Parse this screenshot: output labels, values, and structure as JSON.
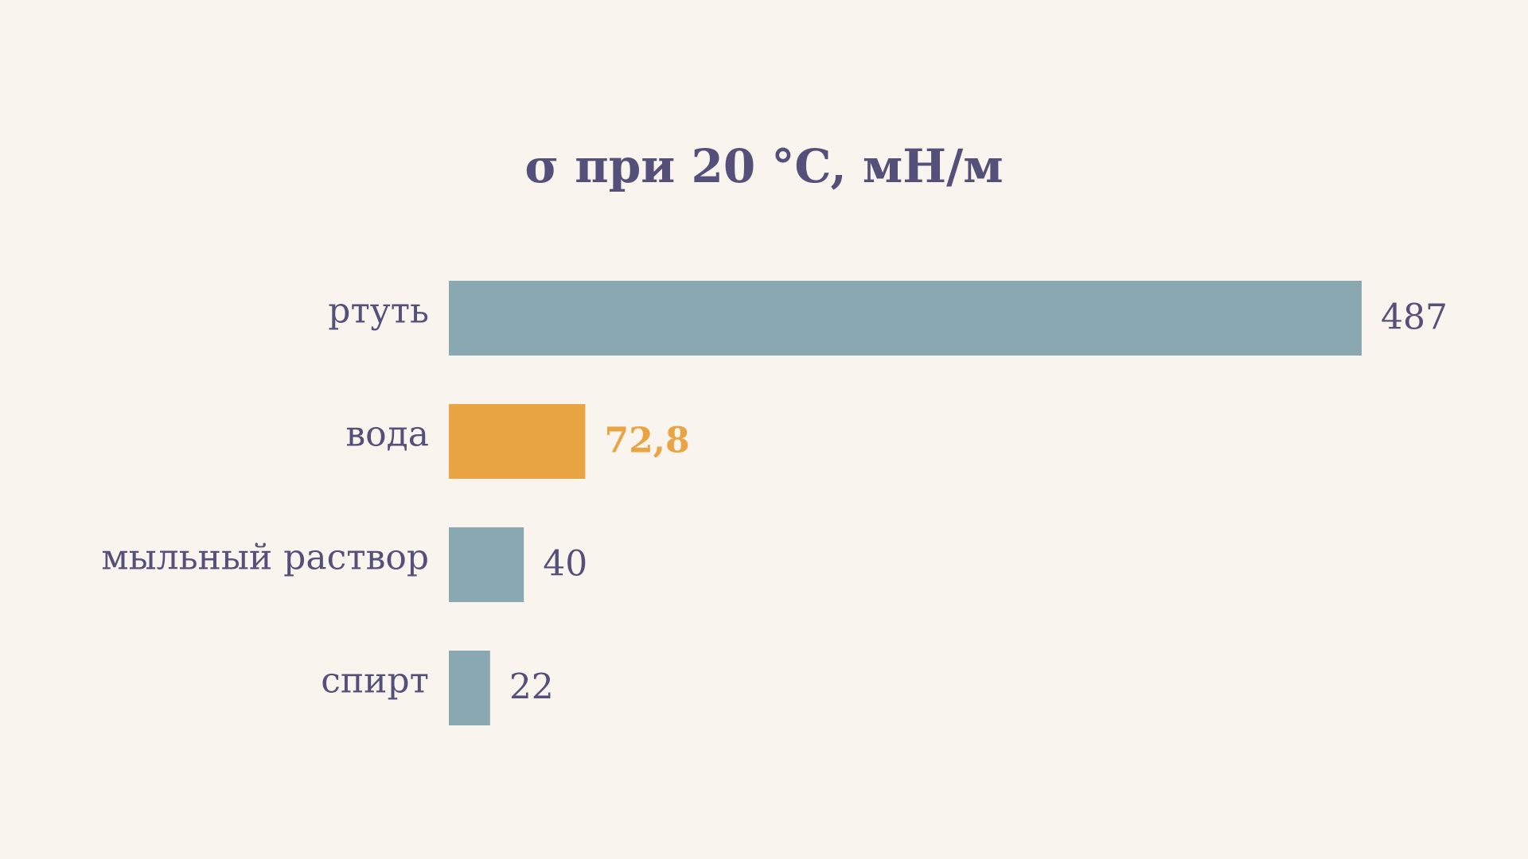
{
  "chart_data": {
    "type": "hbar",
    "title": "σ при 20 °C, мН/м",
    "categories": [
      "ртуть",
      "вода",
      "мыльный раствор",
      "спирт"
    ],
    "values": [
      487,
      72.8,
      40,
      22
    ],
    "value_labels": [
      "487",
      "72,8",
      "40",
      "22"
    ],
    "colors": [
      "#8aa8b2",
      "#e9a544",
      "#8aa8b2",
      "#8aa8b2"
    ],
    "value_label_colors": [
      "#55507a",
      "#e9a544",
      "#55507a",
      "#55507a"
    ]
  }
}
